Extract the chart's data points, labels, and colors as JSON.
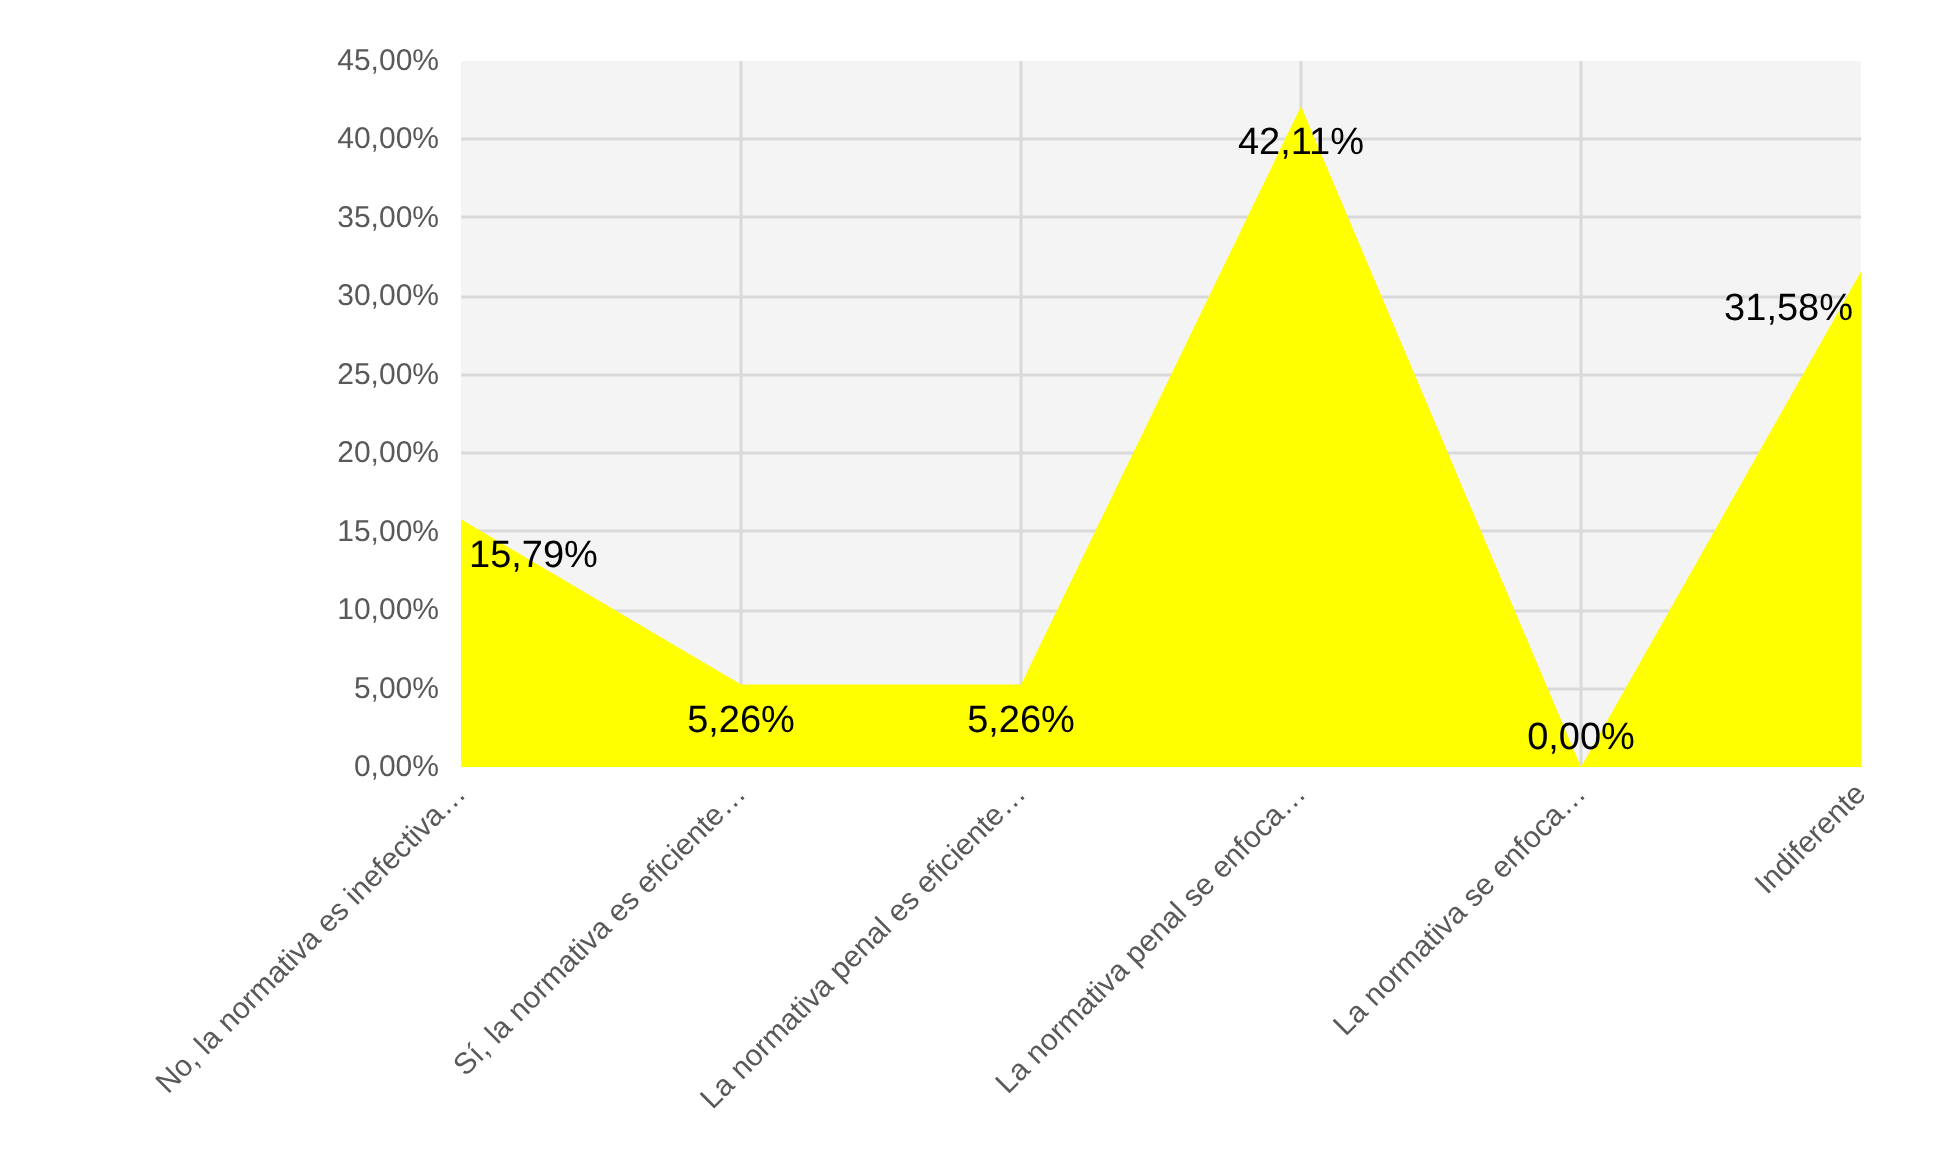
{
  "chart_data": {
    "type": "area",
    "categories": [
      "No, la normativa es inefectiva…",
      "Sí, la normativa es eficiente…",
      "La normativa penal es eficiente…",
      "La normativa penal se enfoca…",
      "La normativa se enfoca…",
      "Indiferente"
    ],
    "series": [
      {
        "color": "#ffff00",
        "values": [
          15.79,
          5.26,
          5.26,
          42.11,
          0.0,
          31.58
        ],
        "value_labels": [
          "15,79%",
          "5,26%",
          "5,26%",
          "42,11%",
          "0,00%",
          "31,58%"
        ]
      }
    ],
    "ylim": [
      0,
      45
    ],
    "yticks": [
      {
        "value": 0,
        "label": "0,00%"
      },
      {
        "value": 5,
        "label": "5,00%"
      },
      {
        "value": 10,
        "label": "10,00%"
      },
      {
        "value": 15,
        "label": "15,00%"
      },
      {
        "value": 20,
        "label": "20,00%"
      },
      {
        "value": 25,
        "label": "25,00%"
      },
      {
        "value": 30,
        "label": "30,00%"
      },
      {
        "value": 35,
        "label": "35,00%"
      },
      {
        "value": 40,
        "label": "40,00%"
      },
      {
        "value": 45,
        "label": "45,00%"
      }
    ],
    "grid": true
  }
}
